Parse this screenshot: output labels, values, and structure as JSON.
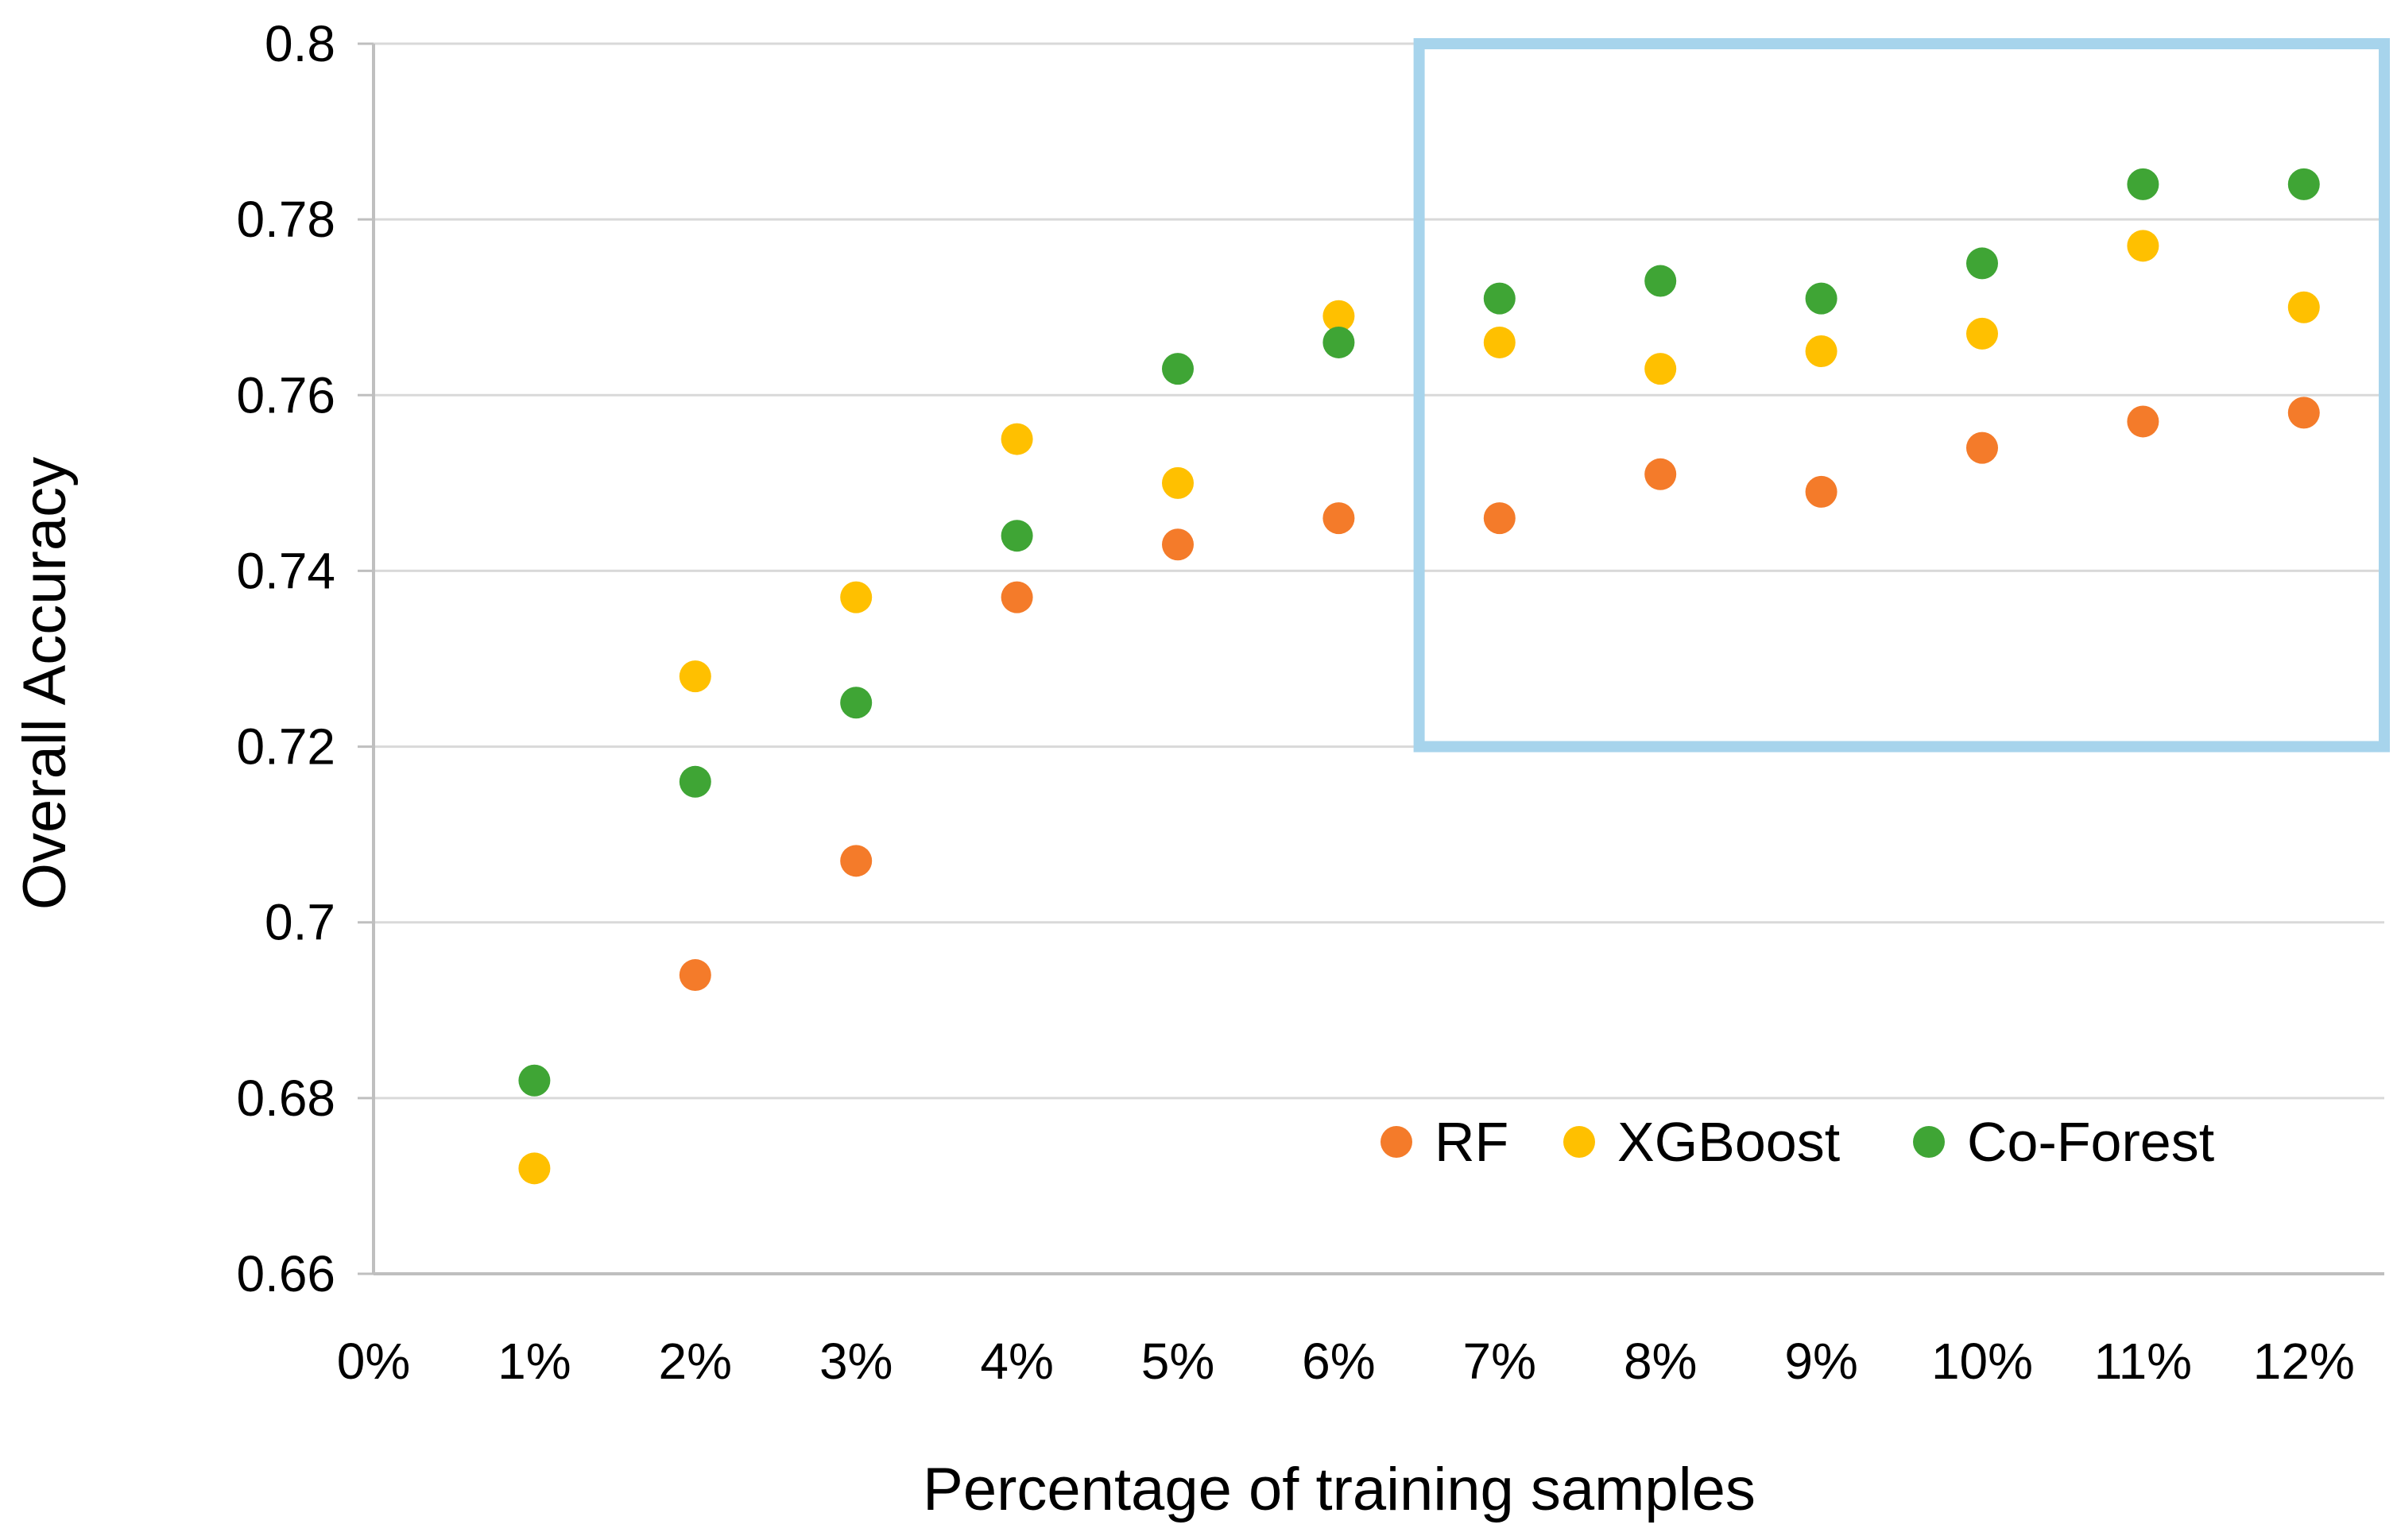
{
  "chart_data": {
    "type": "scatter",
    "title": "",
    "xlabel": "Percentage of training samples",
    "ylabel": "Overall Accuracy",
    "xlim": [
      0,
      12
    ],
    "ylim": [
      0.66,
      0.8
    ],
    "x_tick_labels": [
      "0%",
      "1%",
      "2%",
      "3%",
      "4%",
      "5%",
      "6%",
      "7%",
      "8%",
      "9%",
      "10%",
      "11%",
      "12%"
    ],
    "y_tick_labels": [
      "0.66",
      "0.68",
      "0.7",
      "0.72",
      "0.74",
      "0.76",
      "0.78",
      "0.8"
    ],
    "y_ticks": [
      0.66,
      0.68,
      0.7,
      0.72,
      0.74,
      0.76,
      0.78,
      0.8
    ],
    "grid": true,
    "legend_position": "bottom-right",
    "x": [
      1,
      2,
      3,
      4,
      5,
      6,
      7,
      8,
      9,
      10,
      11,
      12
    ],
    "series": [
      {
        "name": "RF",
        "color": "#f47b2a",
        "values": [
          null,
          0.694,
          0.707,
          0.737,
          0.743,
          0.746,
          0.746,
          0.751,
          0.749,
          0.754,
          0.757,
          0.758
        ]
      },
      {
        "name": "XGBoost",
        "color": "#ffc000",
        "values": [
          0.672,
          0.728,
          0.737,
          0.755,
          0.75,
          0.769,
          0.766,
          0.763,
          0.765,
          0.767,
          0.777,
          0.77
        ]
      },
      {
        "name": "Co-Forest",
        "color": "#3fa535",
        "values": [
          0.682,
          0.716,
          0.725,
          0.744,
          0.763,
          0.766,
          0.771,
          0.773,
          0.771,
          0.775,
          0.784,
          0.784
        ]
      }
    ],
    "highlight_box": {
      "x_range": [
        6.5,
        12.5
      ],
      "y_range": [
        0.72,
        0.8
      ],
      "color": "#a7d4ec"
    }
  }
}
